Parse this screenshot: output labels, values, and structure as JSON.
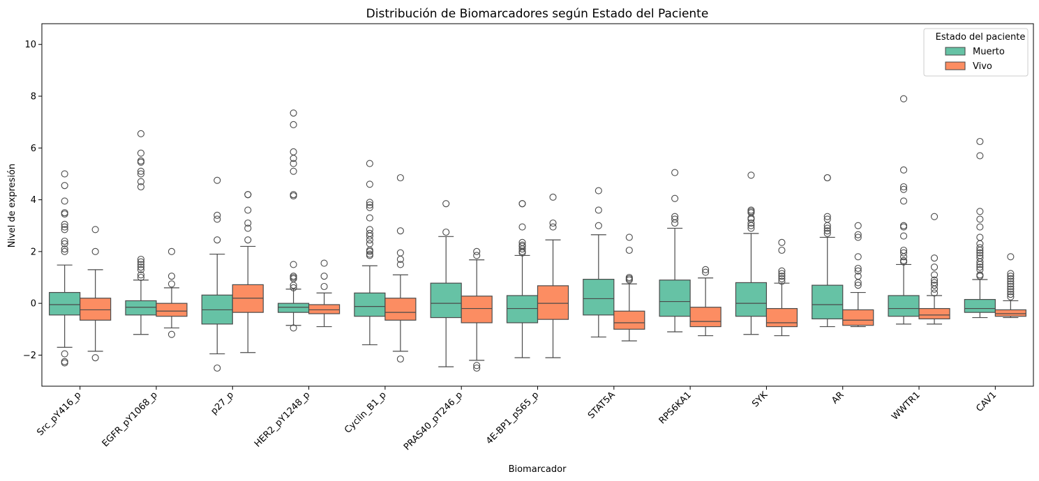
{
  "chart_data": {
    "type": "box",
    "title": "Distribución de Biomarcadores según Estado del Paciente",
    "xlabel": "Biomarcador",
    "ylabel": "Nivel de expresión",
    "ylim": [
      -3.2,
      10.8
    ],
    "yticks": [
      -2,
      0,
      2,
      4,
      6,
      8,
      10
    ],
    "grid": false,
    "legend": {
      "title": "Estado del paciente",
      "placement": "top-right"
    },
    "categories": [
      "Src_pY416_p",
      "EGFR_pY1068_p",
      "p27_p",
      "HER2_pY1248_p",
      "Cyclin_B1_p",
      "PRAS40_pT246_p",
      "4E-BP1_pS65_p",
      "STAT5A",
      "RPS6KA1",
      "SYK",
      "AR",
      "WWTR1",
      "CAV1"
    ],
    "series": [
      {
        "name": "Muerto",
        "color": "#66c2a5",
        "boxes": [
          {
            "whislo": -1.7,
            "q1": -0.45,
            "med": -0.05,
            "q3": 0.42,
            "whishi": 1.48,
            "fliers": [
              -2.3,
              -2.25,
              -1.95,
              2.0,
              2.1,
              2.3,
              2.4,
              2.85,
              2.95,
              3.05,
              3.45,
              3.5,
              3.95,
              4.55,
              5.0
            ]
          },
          {
            "whislo": -1.2,
            "q1": -0.45,
            "med": -0.15,
            "q3": 0.1,
            "whishi": 0.9,
            "fliers": [
              1.0,
              1.1,
              1.3,
              1.4,
              1.5,
              1.6,
              1.7,
              4.5,
              4.7,
              5.0,
              5.1,
              5.45,
              5.5,
              5.8,
              6.55
            ]
          },
          {
            "whislo": -1.95,
            "q1": -0.8,
            "med": -0.25,
            "q3": 0.32,
            "whishi": 1.9,
            "fliers": [
              -2.5,
              2.45,
              3.25,
              3.4,
              4.75
            ]
          },
          {
            "whislo": -0.85,
            "q1": -0.35,
            "med": -0.15,
            "q3": 0.0,
            "whishi": 0.55,
            "fliers": [
              -0.95,
              0.6,
              0.7,
              0.95,
              1.0,
              1.05,
              1.5,
              4.15,
              4.2,
              5.1,
              5.4,
              5.6,
              5.85,
              6.9,
              7.35
            ]
          },
          {
            "whislo": -1.6,
            "q1": -0.5,
            "med": -0.12,
            "q3": 0.4,
            "whishi": 1.45,
            "fliers": [
              1.85,
              1.9,
              2.0,
              2.05,
              2.3,
              2.45,
              2.6,
              2.7,
              2.85,
              3.3,
              3.7,
              3.8,
              3.9,
              4.6,
              5.4
            ]
          },
          {
            "whislo": -2.45,
            "q1": -0.55,
            "med": 0.0,
            "q3": 0.78,
            "whishi": 2.58,
            "fliers": [
              2.75,
              3.85
            ]
          },
          {
            "whislo": -2.1,
            "q1": -0.75,
            "med": -0.2,
            "q3": 0.3,
            "whishi": 1.85,
            "fliers": [
              1.95,
              2.0,
              2.1,
              2.2,
              2.25,
              2.35,
              2.95,
              3.85,
              3.85
            ]
          },
          {
            "whislo": -1.3,
            "q1": -0.45,
            "med": 0.18,
            "q3": 0.93,
            "whishi": 2.65,
            "fliers": [
              3.0,
              3.6,
              4.35
            ]
          },
          {
            "whislo": -1.1,
            "q1": -0.5,
            "med": 0.07,
            "q3": 0.9,
            "whishi": 2.9,
            "fliers": [
              3.1,
              3.25,
              3.35,
              4.05,
              5.05
            ]
          },
          {
            "whislo": -1.2,
            "q1": -0.5,
            "med": 0.0,
            "q3": 0.8,
            "whishi": 2.7,
            "fliers": [
              2.9,
              3.0,
              3.1,
              3.25,
              3.3,
              3.5,
              3.55,
              3.6,
              4.95
            ]
          },
          {
            "whislo": -0.9,
            "q1": -0.6,
            "med": -0.05,
            "q3": 0.7,
            "whishi": 2.55,
            "fliers": [
              2.7,
              2.8,
              2.9,
              3.0,
              3.25,
              3.35,
              4.85,
              4.85
            ]
          },
          {
            "whislo": -0.8,
            "q1": -0.5,
            "med": -0.2,
            "q3": 0.3,
            "whishi": 1.5,
            "fliers": [
              1.6,
              1.65,
              1.8,
              1.95,
              2.05,
              2.6,
              2.95,
              3.0,
              3.95,
              4.4,
              4.5,
              5.15,
              7.9
            ]
          },
          {
            "whislo": -0.55,
            "q1": -0.35,
            "med": -0.2,
            "q3": 0.15,
            "whishi": 0.92,
            "fliers": [
              1.05,
              1.1,
              1.3,
              1.4,
              1.5,
              1.6,
              1.75,
              1.85,
              1.95,
              2.05,
              2.15,
              2.3,
              2.55,
              2.95,
              3.25,
              3.55,
              5.7,
              6.25
            ]
          }
        ]
      },
      {
        "name": "Vivo",
        "color": "#fc8d62",
        "boxes": [
          {
            "whislo": -1.85,
            "q1": -0.65,
            "med": -0.25,
            "q3": 0.2,
            "whishi": 1.3,
            "fliers": [
              -2.1,
              2.0,
              2.85
            ]
          },
          {
            "whislo": -0.95,
            "q1": -0.5,
            "med": -0.3,
            "q3": 0.0,
            "whishi": 0.6,
            "fliers": [
              -1.2,
              0.75,
              1.05,
              2.0
            ]
          },
          {
            "whislo": -1.9,
            "q1": -0.35,
            "med": 0.2,
            "q3": 0.72,
            "whishi": 2.2,
            "fliers": [
              2.45,
              2.9,
              3.1,
              3.6,
              4.2,
              4.2
            ]
          },
          {
            "whislo": -0.9,
            "q1": -0.4,
            "med": -0.25,
            "q3": -0.05,
            "whishi": 0.4,
            "fliers": [
              0.65,
              1.05,
              1.55
            ]
          },
          {
            "whislo": -1.85,
            "q1": -0.65,
            "med": -0.35,
            "q3": 0.2,
            "whishi": 1.1,
            "fliers": [
              -2.15,
              1.5,
              1.7,
              1.95,
              2.8,
              4.85
            ]
          },
          {
            "whislo": -2.2,
            "q1": -0.75,
            "med": -0.2,
            "q3": 0.28,
            "whishi": 1.68,
            "fliers": [
              -2.5,
              -2.4,
              1.85,
              2.0
            ]
          },
          {
            "whislo": -2.1,
            "q1": -0.62,
            "med": 0.0,
            "q3": 0.68,
            "whishi": 2.45,
            "fliers": [
              2.95,
              3.1,
              4.1
            ]
          },
          {
            "whislo": -1.45,
            "q1": -1.0,
            "med": -0.75,
            "q3": -0.3,
            "whishi": 0.75,
            "fliers": [
              0.9,
              0.95,
              1.0,
              2.05,
              2.55
            ]
          },
          {
            "whislo": -1.25,
            "q1": -0.9,
            "med": -0.7,
            "q3": -0.15,
            "whishi": 0.98,
            "fliers": [
              1.2,
              1.3
            ]
          },
          {
            "whislo": -1.25,
            "q1": -0.9,
            "med": -0.75,
            "q3": -0.2,
            "whishi": 0.78,
            "fliers": [
              0.85,
              0.95,
              1.05,
              1.15,
              1.25,
              2.05,
              2.35
            ]
          },
          {
            "whislo": -0.9,
            "q1": -0.85,
            "med": -0.65,
            "q3": -0.25,
            "whishi": 0.42,
            "fliers": [
              0.7,
              0.8,
              1.05,
              1.25,
              1.35,
              1.8,
              2.55,
              2.65,
              3.0
            ]
          },
          {
            "whislo": -0.8,
            "q1": -0.6,
            "med": -0.45,
            "q3": -0.2,
            "whishi": 0.3,
            "fliers": [
              0.4,
              0.55,
              0.7,
              0.8,
              0.9,
              1.1,
              1.4,
              1.75,
              3.35
            ]
          },
          {
            "whislo": -0.55,
            "q1": -0.5,
            "med": -0.4,
            "q3": -0.25,
            "whishi": 0.1,
            "fliers": [
              0.25,
              0.35,
              0.45,
              0.55,
              0.65,
              0.75,
              0.85,
              0.95,
              1.05,
              1.15,
              1.8
            ]
          }
        ]
      }
    ]
  }
}
